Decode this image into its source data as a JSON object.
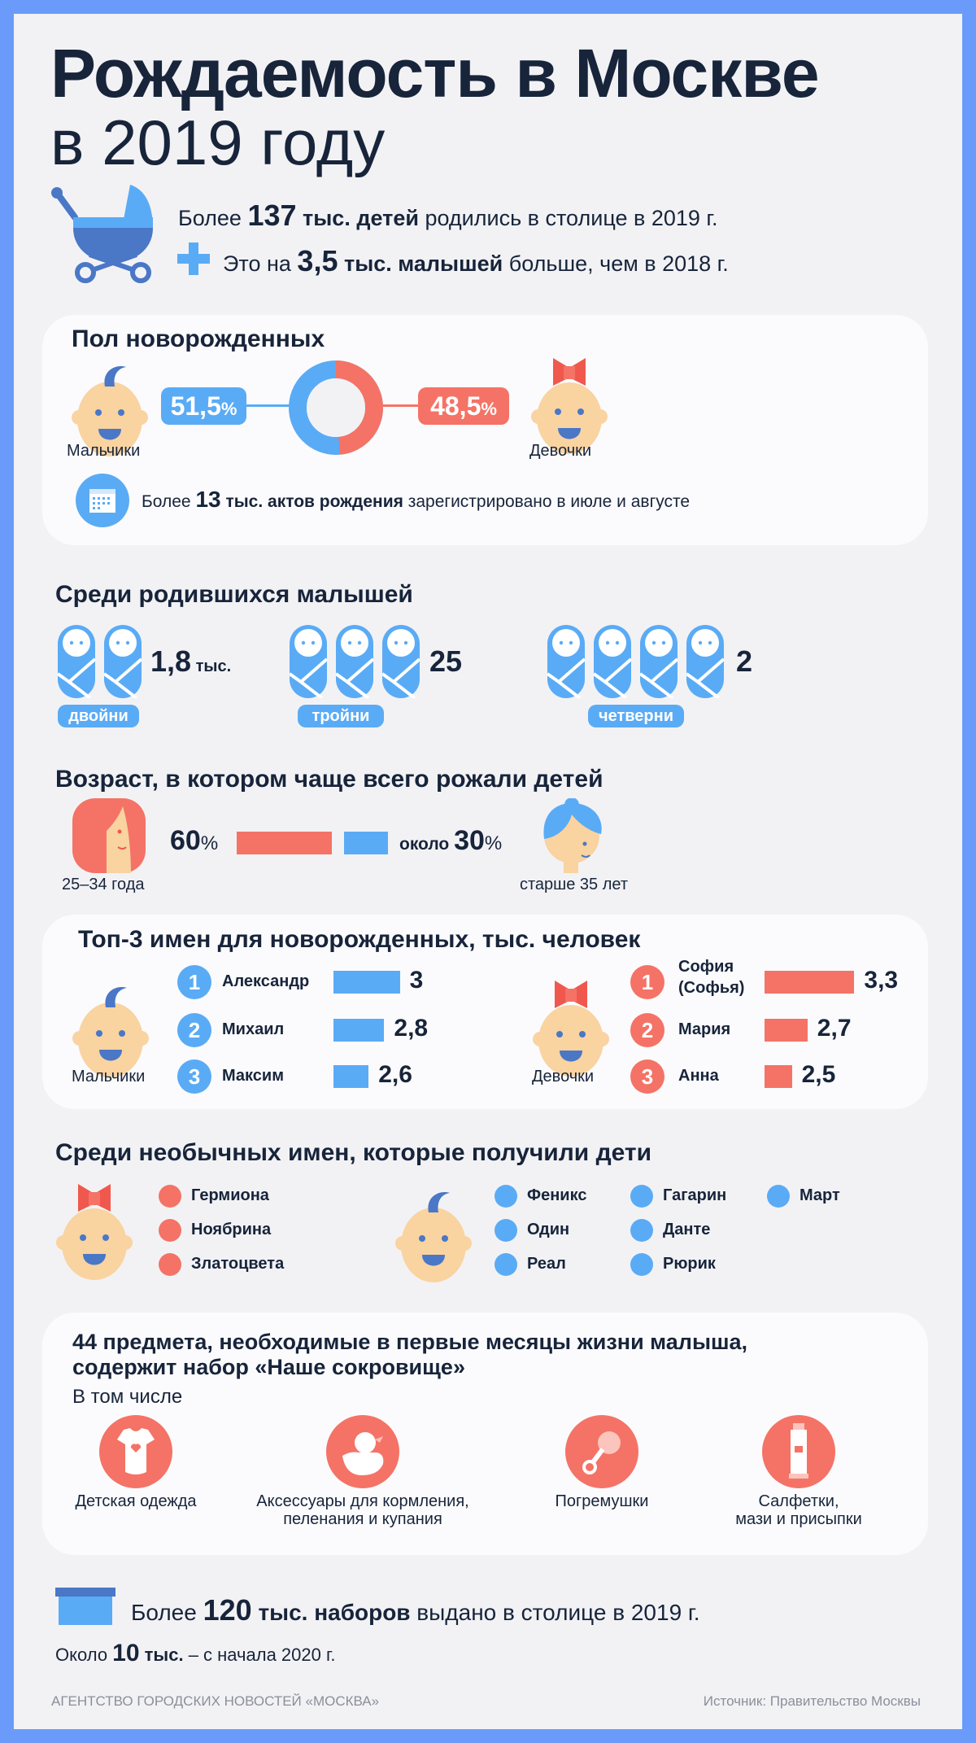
{
  "title": {
    "line1": "Рождаемость в Москве",
    "line2": "в 2019 году"
  },
  "intro": {
    "l1": {
      "pre": "Более ",
      "num": "137",
      "bold": " тыс. детей",
      "post": " родились в столице в 2019 г."
    },
    "l2": {
      "pre": "Это на ",
      "num": "3,5",
      "bold": " тыс. малышей",
      "post": " больше, чем в 2018 г."
    }
  },
  "gender": {
    "title": "Пол новорожденных",
    "boys_label": "Мальчики",
    "girls_label": "Девочки",
    "boys_pct": "51,5",
    "girls_pct": "48,5",
    "pct": "%",
    "boys_value": 51.5,
    "girls_value": 48.5,
    "note": {
      "pre": "Более ",
      "num": "13",
      "bold": " тыс. актов рождения",
      "post": " зарегистрировано в июле и августе"
    }
  },
  "multiples": {
    "title": "Среди родившихся малышей",
    "items": [
      {
        "label": "двойни",
        "value": "1,8",
        "unit": " тыс.",
        "count": 2
      },
      {
        "label": "тройни",
        "value": "25",
        "unit": "",
        "count": 3
      },
      {
        "label": "четверни",
        "value": "2",
        "unit": "",
        "count": 4
      }
    ]
  },
  "age": {
    "title": "Возраст, в котором чаще всего рожали детей",
    "group1": {
      "label": "25–34 года",
      "value": "60",
      "share": 60
    },
    "group2": {
      "label": "старше 35 лет",
      "prefix": "около ",
      "value": "30",
      "share": 30
    },
    "pct": "%"
  },
  "top_names": {
    "title": "Топ-3 имен для новорожденных, тыс. человек",
    "boys_label": "Мальчики",
    "girls_label": "Девочки",
    "boys": [
      {
        "rank": "1",
        "name": "Александр",
        "value": "3",
        "v": 3
      },
      {
        "rank": "2",
        "name": "Михаил",
        "value": "2,8",
        "v": 2.8
      },
      {
        "rank": "3",
        "name": "Максим",
        "value": "2,6",
        "v": 2.6
      }
    ],
    "girls": [
      {
        "rank": "1",
        "name": "София",
        "name2": "(Софья)",
        "value": "3,3",
        "v": 3.3
      },
      {
        "rank": "2",
        "name": "Мария",
        "value": "2,7",
        "v": 2.7
      },
      {
        "rank": "3",
        "name": "Анна",
        "value": "2,5",
        "v": 2.5
      }
    ]
  },
  "unusual": {
    "title": "Среди необычных имен, которые получили дети",
    "girls": [
      "Гермиона",
      "Ноябрина",
      "Златоцвета"
    ],
    "boys": [
      "Феникс",
      "Один",
      "Реал",
      "Гагарин",
      "Данте",
      "Рюрик",
      "Март"
    ]
  },
  "kit": {
    "title1": "44 предмета, необходимые в первые месяцы жизни малыша,",
    "title2": "содержит набор «Наше сокровище»",
    "subtitle": "В том числе",
    "items": [
      {
        "l1": "Детская одежда",
        "l2": ""
      },
      {
        "l1": "Аксессуары для кормления,",
        "l2": "пеленания и купания"
      },
      {
        "l1": "Погремушки",
        "l2": ""
      },
      {
        "l1": "Салфетки,",
        "l2": "мази и присыпки"
      }
    ]
  },
  "kits_issued": {
    "pre": "Более ",
    "num": "120",
    "bold": " тыс. наборов",
    "post": " выдано в столице в 2019 г."
  },
  "kits_2020": {
    "pre": "Около ",
    "num": "10",
    "bold": " тыс.",
    "post": " – с начала 2020 г."
  },
  "footer": {
    "agency": "АГЕНТСТВО ГОРОДСКИХ НОВОСТЕЙ «МОСКВА»",
    "source": "Источник: Правительство Москвы"
  },
  "colors": {
    "blue": "#5aabf5",
    "dark_blue": "#4a77c6",
    "red": "#f47366",
    "skin": "#f9d3a0",
    "frame": "#6a9bfb"
  }
}
